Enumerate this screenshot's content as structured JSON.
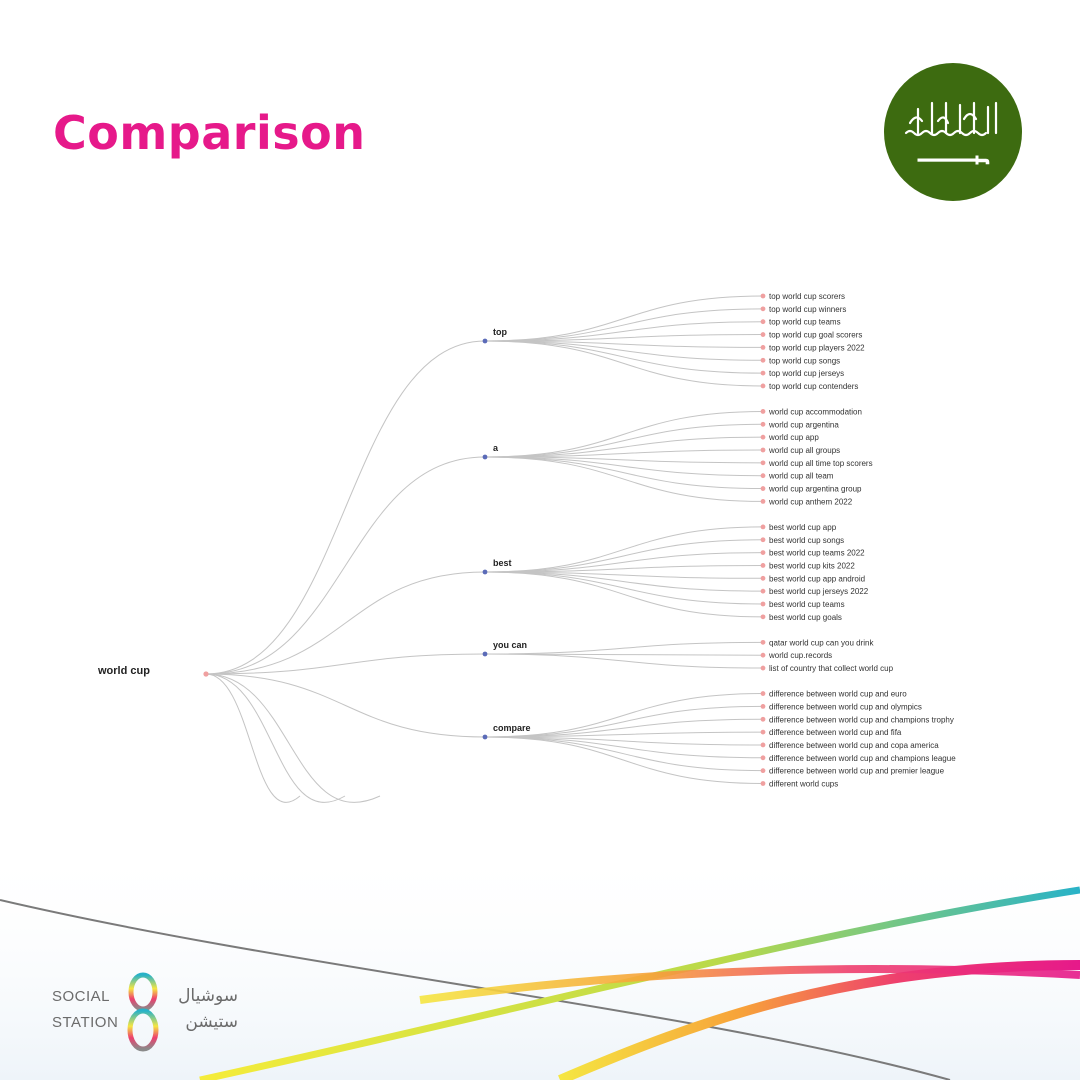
{
  "title": "Comparison",
  "flag": {
    "inscription": "لا إله إلا الله محمد رسول الله",
    "background": "#3d6b10",
    "foreground": "#ffffff"
  },
  "tree": {
    "root": "world cup",
    "branches": [
      {
        "label": "top",
        "leaves": [
          "top world cup scorers",
          "top world cup winners",
          "top world cup teams",
          "top world cup goal scorers",
          "top world cup players 2022",
          "top world cup songs",
          "top world cup jerseys",
          "top world cup contenders"
        ]
      },
      {
        "label": "a",
        "leaves": [
          "world cup accommodation",
          "world cup argentina",
          "world cup app",
          "world cup all groups",
          "world cup all time top scorers",
          "world cup all team",
          "world cup argentina group",
          "world cup anthem 2022"
        ]
      },
      {
        "label": "best",
        "leaves": [
          "best world cup app",
          "best world cup songs",
          "best world cup teams 2022",
          "best world cup kits 2022",
          "best world cup app android",
          "best world cup jerseys 2022",
          "best world cup teams",
          "best world cup goals"
        ]
      },
      {
        "label": "you can",
        "leaves": [
          "qatar world cup can you drink",
          "world cup.records",
          "list of country that collect world cup"
        ]
      },
      {
        "label": "compare",
        "leaves": [
          "difference between world cup and euro",
          "difference between world cup and olympics",
          "difference between world cup and champions trophy",
          "difference between world cup and fifa",
          "difference between world cup and copa america",
          "difference between world cup and champions league",
          "difference between world cup and premier league",
          "different world cups"
        ]
      }
    ]
  },
  "brand": {
    "line1": "SOCIAL",
    "line2": "STATION",
    "ar_line1": "سوشيال",
    "ar_line2": "ستيشن"
  },
  "colors": {
    "title": "#e6198a",
    "root_node": "#f0a0a0",
    "branch_node": "#5b6bb8",
    "leaf_node": "#f0a0a0",
    "link": "#c4c4c4",
    "brand_text": "#6b6b6b"
  }
}
